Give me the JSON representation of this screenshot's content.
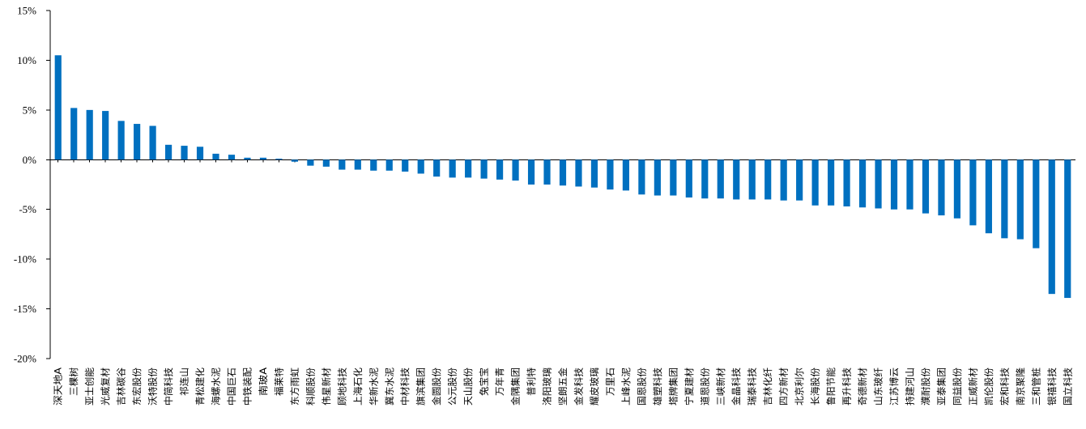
{
  "chart_data": {
    "type": "bar",
    "title": "",
    "xlabel": "",
    "ylabel": "",
    "ylim": [
      -20,
      15
    ],
    "yticks": [
      15,
      10,
      5,
      0,
      -5,
      -10,
      -15,
      -20
    ],
    "ytick_labels": [
      "15%",
      "10%",
      "5%",
      "0%",
      "-5%",
      "-10%",
      "-15%",
      "-20%"
    ],
    "grid": false,
    "legend": "none",
    "bar_color": "#0070C0",
    "categories": [
      "深天地A",
      "三棵树",
      "亚士创能",
      "光威复材",
      "吉林碳谷",
      "东宏股份",
      "沃特股份",
      "中简科技",
      "祁连山",
      "青松建化",
      "海螺水泥",
      "中国巨石",
      "中铁装配",
      "南玻A",
      "福莱特",
      "东方雨虹",
      "科顺股份",
      "伟星新材",
      "顾地科技",
      "上海石化",
      "华新水泥",
      "冀东水泥",
      "中材科技",
      "旗滨集团",
      "金圆股份",
      "公元股份",
      "天山股份",
      "兔宝宝",
      "万年青",
      "金隅集团",
      "普利特",
      "洛阳玻璃",
      "坚朗五金",
      "金发科技",
      "耀皮玻璃",
      "万里石",
      "上峰水泥",
      "国恩股份",
      "雄塑科技",
      "塔牌集团",
      "宁夏建材",
      "道恩股份",
      "三峡新材",
      "金晶科技",
      "瑞泰科技",
      "吉林化纤",
      "四方新材",
      "北京利尔",
      "长海股份",
      "鲁阳节能",
      "再升科技",
      "奇德新材",
      "山东玻纤",
      "江苏博云",
      "持建河山",
      "濮耐股份",
      "亚泰集团",
      "同益股份",
      "正威新材",
      "凯伦股份",
      "宏和科技",
      "南京聚隆",
      "三和管桩",
      "银禧科技",
      "国立科技"
    ],
    "values": [
      10.5,
      5.2,
      5.0,
      4.9,
      3.9,
      3.6,
      3.4,
      1.5,
      1.4,
      1.3,
      0.6,
      0.5,
      0.2,
      0.2,
      0.1,
      -0.2,
      -0.6,
      -0.7,
      -1.0,
      -1.0,
      -1.1,
      -1.1,
      -1.2,
      -1.4,
      -1.7,
      -1.8,
      -1.8,
      -1.9,
      -2.0,
      -2.1,
      -2.5,
      -2.5,
      -2.6,
      -2.7,
      -2.8,
      -3.0,
      -3.1,
      -3.5,
      -3.6,
      -3.6,
      -3.8,
      -3.9,
      -3.9,
      -4.0,
      -4.0,
      -4.0,
      -4.1,
      -4.1,
      -4.6,
      -4.6,
      -4.7,
      -4.8,
      -4.9,
      -5.0,
      -5.0,
      -5.4,
      -5.6,
      -5.9,
      -6.6,
      -7.4,
      -7.9,
      -8.0,
      -8.9,
      -13.5,
      -13.9
    ]
  }
}
